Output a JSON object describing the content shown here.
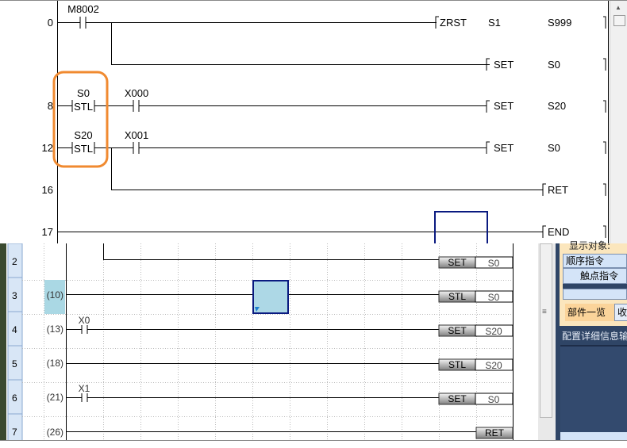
{
  "top_ladder": {
    "rungs": [
      {
        "step": "0",
        "contact": "M8002",
        "instruction": "ZRST",
        "op1": "S1",
        "op2": "S999"
      },
      {
        "step": "",
        "instruction": "SET",
        "op1": "S0"
      },
      {
        "step": "8",
        "stl": "S0",
        "stl_label": "STL",
        "contact": "X000",
        "instruction": "SET",
        "op1": "S20"
      },
      {
        "step": "12",
        "stl": "S20",
        "stl_label": "STL",
        "contact": "X001",
        "instruction": "SET",
        "op1": "S0"
      },
      {
        "step": "16",
        "instruction": "RET"
      },
      {
        "step": "17",
        "instruction": "END"
      }
    ],
    "highlight_color": "#f08a30"
  },
  "bottom_ladder": {
    "rows": [
      {
        "row": "2",
        "step": "",
        "instruction": "SET",
        "operand": "S0"
      },
      {
        "row": "3",
        "step": "(10)",
        "instruction": "STL",
        "operand": "S0"
      },
      {
        "row": "4",
        "step": "(13)",
        "contact": "X0",
        "instruction": "SET",
        "operand": "S20"
      },
      {
        "row": "5",
        "step": "(18)",
        "instruction": "STL",
        "operand": "S20"
      },
      {
        "row": "6",
        "step": "(21)",
        "contact": "X1",
        "instruction": "SET",
        "operand": "S0"
      },
      {
        "row": "7",
        "step": "(26)",
        "instruction": "RET"
      }
    ]
  },
  "side_panel": {
    "header": "显示对象:",
    "tree_items": [
      "顺序指令",
      "触点指令"
    ],
    "tabs": [
      "部件一览",
      "收藏"
    ],
    "detail_title": "配置详细信息输入"
  }
}
